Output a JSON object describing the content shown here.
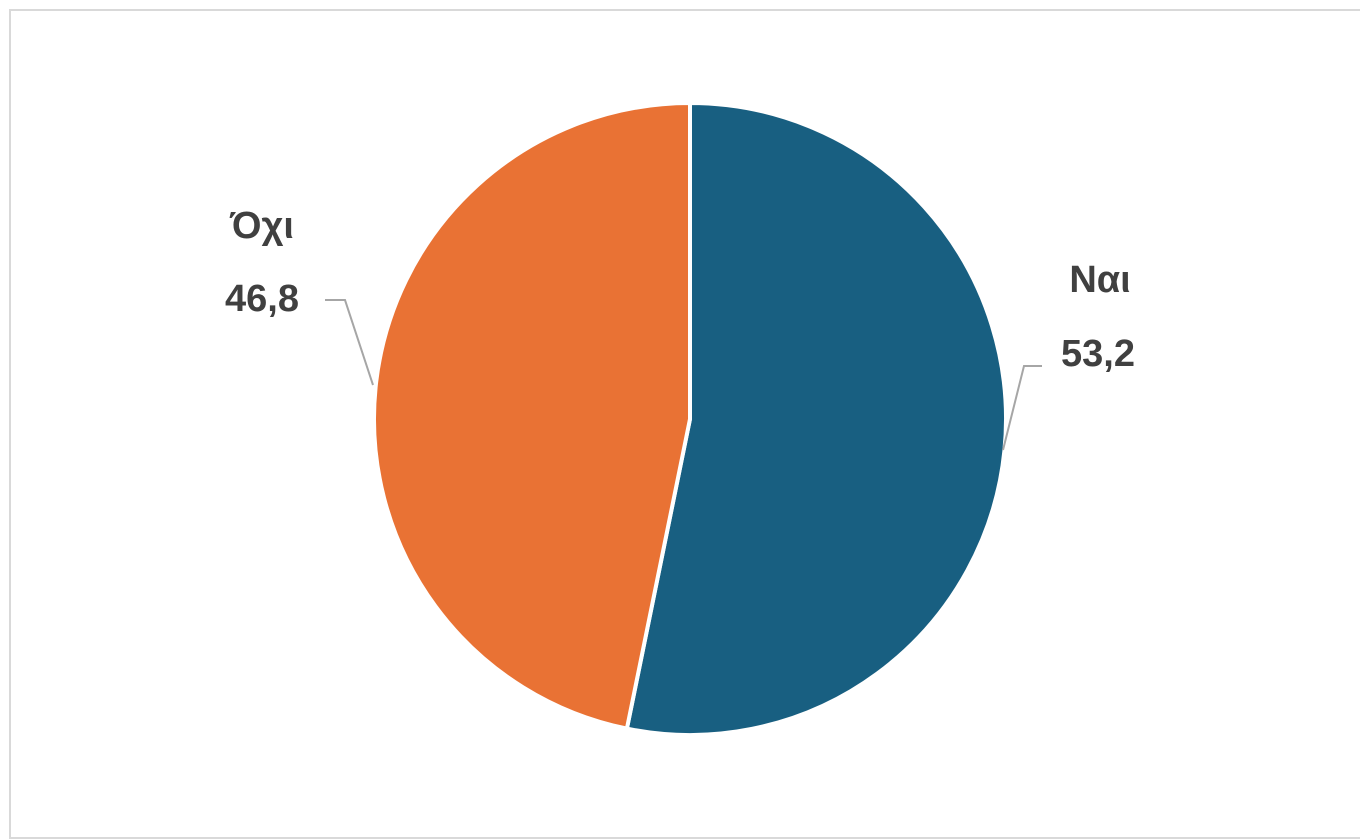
{
  "chart_data": {
    "type": "pie",
    "slices": [
      {
        "label": "Ναι",
        "value": 53.2,
        "value_text": "53,2",
        "color": "#185f81"
      },
      {
        "label": "Όχι",
        "value": 46.8,
        "value_text": "46,8",
        "color": "#e97234"
      }
    ],
    "start_angle_deg": 0,
    "direction": "clockwise",
    "legend": "none",
    "data_labels": "outside with leader lines"
  }
}
